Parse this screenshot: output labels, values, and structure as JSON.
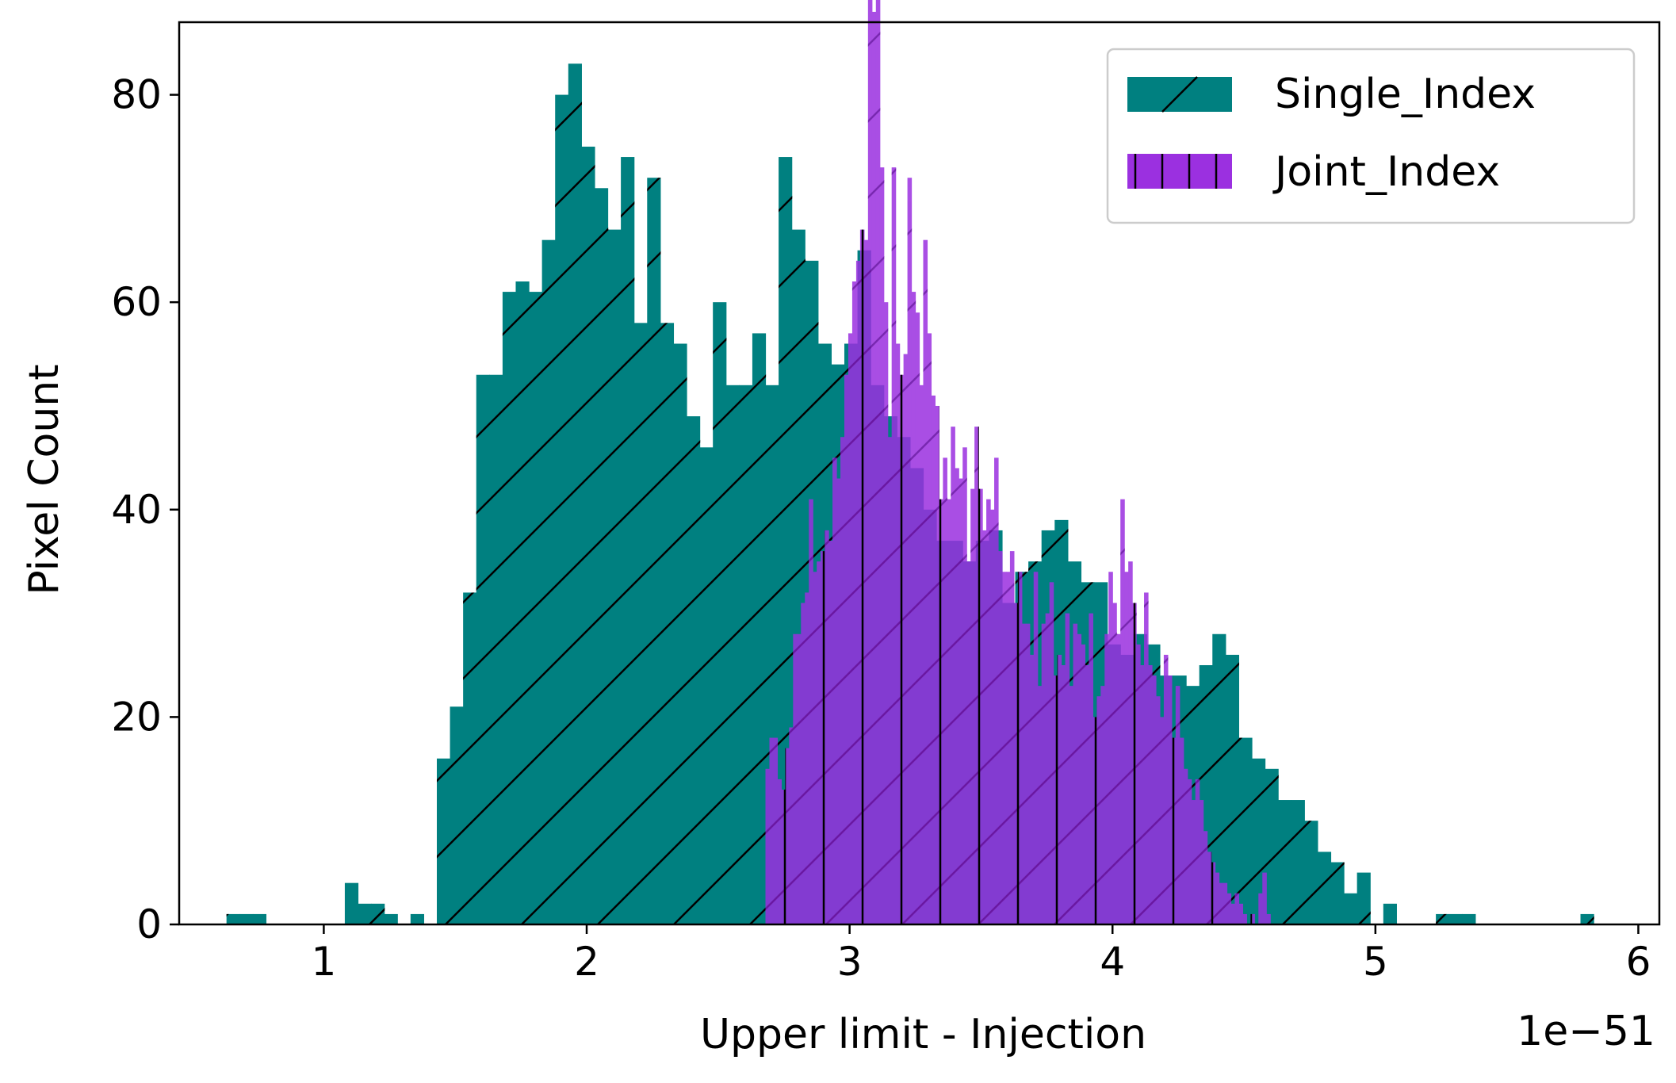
{
  "chart_data": {
    "type": "bar",
    "title": "",
    "xlabel": "Upper limit - Injection",
    "ylabel": "Pixel Count",
    "x_offset_label": "1e−51",
    "xlim": [
      0.45,
      6.08
    ],
    "ylim": [
      0,
      87
    ],
    "xticks": [
      1,
      2,
      3,
      4,
      5,
      6
    ],
    "yticks": [
      0,
      20,
      40,
      60,
      80
    ],
    "grid": false,
    "legend_position": "top-right",
    "series": [
      {
        "name": "Single_Index",
        "color": "#008080",
        "hatch": "diagonal",
        "bin_start": 0.63,
        "bin_width": 0.05,
        "counts": [
          1,
          1,
          1,
          0,
          0,
          0,
          0,
          0,
          0,
          4,
          2,
          2,
          1,
          0,
          1,
          0,
          16,
          21,
          32,
          53,
          53,
          61,
          62,
          61,
          66,
          80,
          83,
          75,
          71,
          67,
          74,
          58,
          72,
          58,
          56,
          49,
          46,
          60,
          52,
          52,
          57,
          52,
          74,
          67,
          64,
          56,
          54,
          56,
          65,
          52,
          49,
          47,
          44,
          40,
          37,
          37,
          35,
          37,
          38,
          31,
          34,
          35,
          38,
          39,
          35,
          33,
          33,
          27,
          26,
          28,
          27,
          24,
          24,
          23,
          25,
          28,
          26,
          18,
          16,
          15,
          12,
          12,
          10,
          7,
          6,
          3,
          5,
          0,
          2,
          0,
          0,
          0,
          1,
          1,
          1,
          0,
          0,
          0,
          0,
          0,
          0,
          0,
          0,
          1
        ],
        "tick_labels": [
          "1",
          "2",
          "3",
          "4",
          "5",
          "6"
        ]
      },
      {
        "name": "Joint_Index",
        "color": "#9b30e0",
        "hatch": "vertical",
        "bin_start": 2.68,
        "bin_width": 0.015,
        "counts": [
          15,
          18,
          18,
          14,
          13,
          17,
          19,
          28,
          28,
          31,
          32,
          41,
          34,
          35,
          36,
          38,
          37,
          45,
          43,
          47,
          53,
          57,
          62,
          64,
          67,
          66,
          97,
          88,
          90,
          73,
          60,
          47,
          73,
          56,
          53,
          55,
          72,
          61,
          59,
          52,
          66,
          57,
          51,
          50,
          41,
          45,
          41,
          48,
          44,
          43,
          46,
          35,
          42,
          48,
          42,
          38,
          41,
          40,
          45,
          36,
          34,
          34,
          36,
          31,
          34,
          29,
          29,
          26,
          34,
          23,
          29,
          30,
          33,
          24,
          26,
          25,
          30,
          23,
          29,
          28,
          27,
          25,
          30,
          20,
          22,
          23,
          28,
          34,
          31,
          28,
          41,
          34,
          35,
          31,
          27,
          25,
          32,
          25,
          24,
          22,
          20,
          26,
          24,
          18,
          23,
          18,
          15,
          14,
          12,
          14,
          12,
          9,
          7,
          6,
          5,
          4,
          4,
          3,
          2,
          3,
          2,
          1,
          0,
          1,
          0,
          3,
          5,
          1
        ]
      }
    ]
  }
}
